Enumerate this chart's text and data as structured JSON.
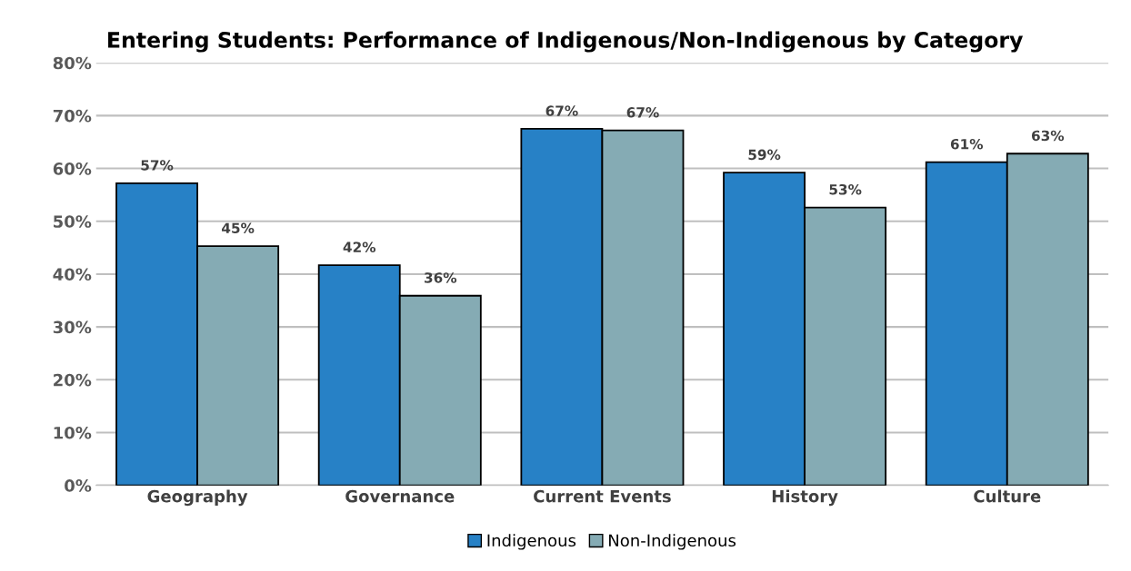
{
  "chart_data": {
    "type": "bar",
    "title": "Entering Students: Performance of Indigenous/Non-Indigenous by Category",
    "categories": [
      "Geography",
      "Governance",
      "Current Events",
      "History",
      "Culture"
    ],
    "series": [
      {
        "name": "Indigenous",
        "color": "#2781c6",
        "values": [
          57.2,
          41.7,
          67.5,
          59.2,
          61.2
        ],
        "value_labels": [
          "57%",
          "42%",
          "67%",
          "59%",
          "61%"
        ]
      },
      {
        "name": "Non-Indigenous",
        "color": "#85abb4",
        "values": [
          45.3,
          35.9,
          67.2,
          52.6,
          62.8
        ],
        "value_labels": [
          "45%",
          "36%",
          "67%",
          "53%",
          "63%"
        ]
      }
    ],
    "ylim": [
      0,
      80
    ],
    "yticks": [
      {
        "value": 0,
        "label": "0%"
      },
      {
        "value": 10,
        "label": "10%"
      },
      {
        "value": 20,
        "label": "20%"
      },
      {
        "value": 30,
        "label": "30%"
      },
      {
        "value": 40,
        "label": "40%"
      },
      {
        "value": 50,
        "label": "50%"
      },
      {
        "value": 60,
        "label": "60%"
      },
      {
        "value": 70,
        "label": "70%"
      },
      {
        "value": 80,
        "label": "80%"
      }
    ],
    "grid": "y",
    "legend": "bottom"
  }
}
